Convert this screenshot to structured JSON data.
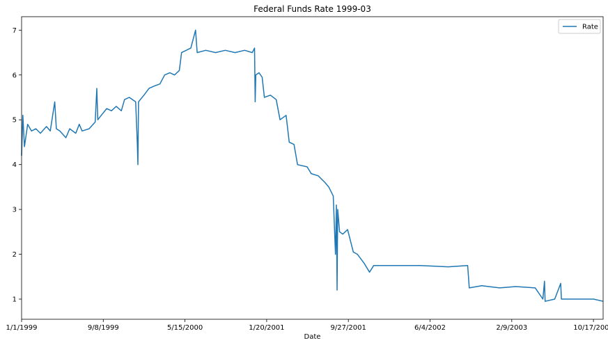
{
  "chart_data": {
    "type": "line",
    "title": "Federal Funds Rate 1999-03",
    "xlabel": "Date",
    "ylabel": "",
    "x_tick_labels": [
      "1/1/1999",
      "9/8/1999",
      "5/15/2000",
      "1/20/2001",
      "9/27/2001",
      "6/4/2002",
      "2/9/2003",
      "10/17/2003"
    ],
    "y_ticks": [
      1,
      2,
      3,
      4,
      5,
      6,
      7
    ],
    "ylim": [
      0.55,
      7.3
    ],
    "xlim": [
      "1999-01-01",
      "2003-12-31"
    ],
    "grid": false,
    "legend_position": "top-right",
    "color": "#1f77b4",
    "series": [
      {
        "name": "Rate",
        "points": [
          [
            "1999-01-01",
            4.2
          ],
          [
            "1999-01-05",
            5.1
          ],
          [
            "1999-01-10",
            4.4
          ],
          [
            "1999-01-20",
            4.9
          ],
          [
            "1999-02-01",
            4.75
          ],
          [
            "1999-02-15",
            4.8
          ],
          [
            "1999-03-01",
            4.7
          ],
          [
            "1999-03-20",
            4.85
          ],
          [
            "1999-04-01",
            4.75
          ],
          [
            "1999-04-15",
            5.4
          ],
          [
            "1999-04-20",
            4.8
          ],
          [
            "1999-05-01",
            4.75
          ],
          [
            "1999-05-20",
            4.6
          ],
          [
            "1999-06-01",
            4.8
          ],
          [
            "1999-06-20",
            4.7
          ],
          [
            "1999-07-01",
            4.9
          ],
          [
            "1999-07-10",
            4.75
          ],
          [
            "1999-08-01",
            4.8
          ],
          [
            "1999-08-20",
            4.95
          ],
          [
            "1999-08-25",
            5.7
          ],
          [
            "1999-08-28",
            5.0
          ],
          [
            "1999-09-08",
            5.1
          ],
          [
            "1999-09-25",
            5.25
          ],
          [
            "1999-10-10",
            5.2
          ],
          [
            "1999-10-25",
            5.3
          ],
          [
            "1999-11-10",
            5.2
          ],
          [
            "1999-11-20",
            5.45
          ],
          [
            "1999-12-05",
            5.5
          ],
          [
            "1999-12-25",
            5.4
          ],
          [
            "1999-12-30",
            4.5
          ],
          [
            "2000-01-01",
            4.0
          ],
          [
            "2000-01-03",
            5.4
          ],
          [
            "2000-01-20",
            5.55
          ],
          [
            "2000-02-05",
            5.7
          ],
          [
            "2000-02-20",
            5.75
          ],
          [
            "2000-03-10",
            5.8
          ],
          [
            "2000-03-25",
            6.0
          ],
          [
            "2000-04-10",
            6.05
          ],
          [
            "2000-04-25",
            6.0
          ],
          [
            "2000-05-10",
            6.1
          ],
          [
            "2000-05-17",
            6.5
          ],
          [
            "2000-06-01",
            6.55
          ],
          [
            "2000-06-15",
            6.6
          ],
          [
            "2000-06-30",
            7.0
          ],
          [
            "2000-07-05",
            6.5
          ],
          [
            "2000-08-01",
            6.55
          ],
          [
            "2000-09-01",
            6.5
          ],
          [
            "2000-10-01",
            6.55
          ],
          [
            "2000-11-01",
            6.5
          ],
          [
            "2000-12-01",
            6.55
          ],
          [
            "2000-12-25",
            6.5
          ],
          [
            "2001-01-01",
            6.6
          ],
          [
            "2001-01-03",
            5.4
          ],
          [
            "2001-01-05",
            6.0
          ],
          [
            "2001-01-15",
            6.05
          ],
          [
            "2001-01-25",
            5.95
          ],
          [
            "2001-02-01",
            5.5
          ],
          [
            "2001-02-20",
            5.55
          ],
          [
            "2001-03-10",
            5.45
          ],
          [
            "2001-03-22",
            5.0
          ],
          [
            "2001-04-10",
            5.1
          ],
          [
            "2001-04-20",
            4.5
          ],
          [
            "2001-05-05",
            4.45
          ],
          [
            "2001-05-16",
            4.0
          ],
          [
            "2001-06-15",
            3.95
          ],
          [
            "2001-06-28",
            3.8
          ],
          [
            "2001-07-20",
            3.75
          ],
          [
            "2001-08-10",
            3.6
          ],
          [
            "2001-08-22",
            3.5
          ],
          [
            "2001-09-05",
            3.3
          ],
          [
            "2001-09-12",
            2.0
          ],
          [
            "2001-09-15",
            3.1
          ],
          [
            "2001-09-17",
            1.2
          ],
          [
            "2001-09-19",
            3.0
          ],
          [
            "2001-09-25",
            2.5
          ],
          [
            "2001-10-05",
            2.45
          ],
          [
            "2001-10-20",
            2.55
          ],
          [
            "2001-11-07",
            2.05
          ],
          [
            "2001-11-20",
            2.0
          ],
          [
            "2001-12-11",
            1.8
          ],
          [
            "2001-12-28",
            1.6
          ],
          [
            "2002-01-10",
            1.75
          ],
          [
            "2002-03-01",
            1.75
          ],
          [
            "2002-06-04",
            1.75
          ],
          [
            "2002-09-01",
            1.72
          ],
          [
            "2002-11-01",
            1.75
          ],
          [
            "2002-11-06",
            1.25
          ],
          [
            "2002-12-15",
            1.3
          ],
          [
            "2003-02-09",
            1.25
          ],
          [
            "2003-04-01",
            1.28
          ],
          [
            "2003-06-01",
            1.25
          ],
          [
            "2003-06-25",
            1.0
          ],
          [
            "2003-06-30",
            1.4
          ],
          [
            "2003-07-02",
            0.95
          ],
          [
            "2003-08-01",
            1.0
          ],
          [
            "2003-08-20",
            1.35
          ],
          [
            "2003-08-22",
            1.0
          ],
          [
            "2003-10-17",
            1.0
          ],
          [
            "2003-12-01",
            1.0
          ],
          [
            "2003-12-31",
            0.95
          ]
        ]
      }
    ]
  }
}
